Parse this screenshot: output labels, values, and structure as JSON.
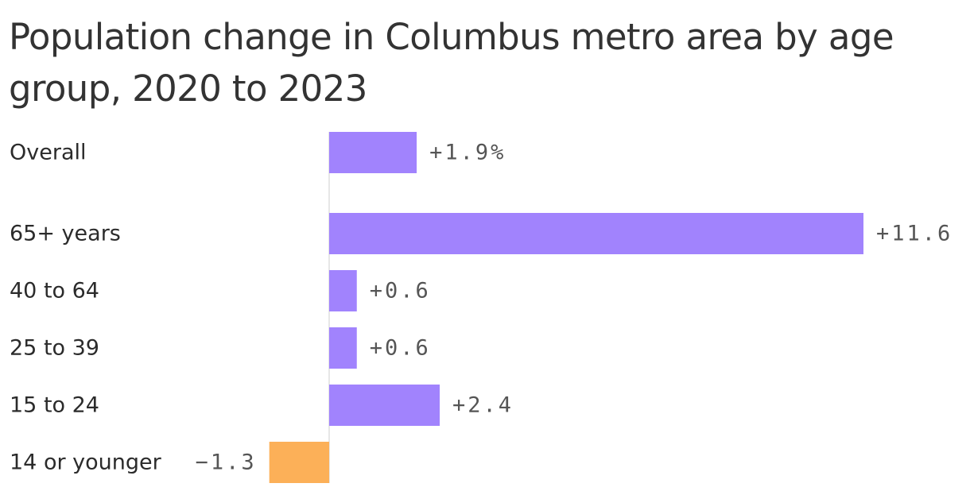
{
  "title": "Population change in Columbus metro area by age group, 2020 to 2023",
  "colors": {
    "positive": "#a183fd",
    "negative": "#fcb058",
    "zero_line": "#cfcfcf"
  },
  "chart_data": {
    "type": "bar",
    "orientation": "horizontal",
    "title": "Population change in Columbus metro area by age group, 2020 to 2023",
    "categories": [
      "Overall",
      "65+ years",
      "40 to 64",
      "25 to 39",
      "15 to 24",
      "14 or younger"
    ],
    "values": [
      1.9,
      11.6,
      0.6,
      0.6,
      2.4,
      -1.3
    ],
    "value_labels": [
      "+1.9%",
      "+11.6",
      "+0.6",
      "+0.6",
      "+2.4",
      "−1.3"
    ],
    "xlim": [
      -1.3,
      11.6
    ],
    "grid": false,
    "legend": "none"
  }
}
